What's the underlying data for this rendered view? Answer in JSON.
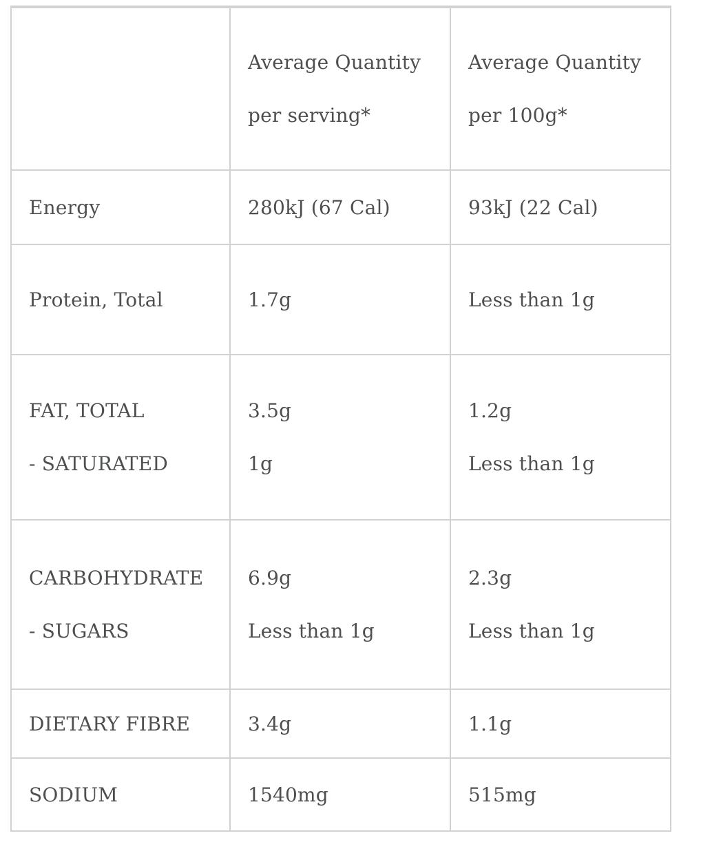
{
  "table": {
    "text_color": "#4e4f51",
    "border_color": "#d2d2d2",
    "header": {
      "per_serving_lines": [
        "Average Quantity",
        "per serving*"
      ],
      "per_100g_lines": [
        "Average Quantity",
        "per 100g*"
      ]
    },
    "rows": [
      {
        "id": "energy",
        "label_lines": [
          "Energy"
        ],
        "per_serving_lines": [
          "280kJ (67 Cal)"
        ],
        "per_100g_lines": [
          "93kJ (22 Cal)"
        ]
      },
      {
        "id": "protein",
        "label_lines": [
          "Protein, Total"
        ],
        "per_serving_lines": [
          "1.7g"
        ],
        "per_100g_lines": [
          "Less than 1g"
        ]
      },
      {
        "id": "fat",
        "label_lines": [
          "FAT, TOTAL",
          "- SATURATED"
        ],
        "per_serving_lines": [
          "3.5g",
          "1g"
        ],
        "per_100g_lines": [
          "1.2g",
          "Less than 1g"
        ]
      },
      {
        "id": "carbohydrate",
        "label_lines": [
          "CARBOHYDRATE",
          "- SUGARS"
        ],
        "per_serving_lines": [
          "6.9g",
          "Less than 1g"
        ],
        "per_100g_lines": [
          "2.3g",
          "Less than 1g"
        ]
      },
      {
        "id": "dietary-fibre",
        "label_lines": [
          "DIETARY FIBRE"
        ],
        "per_serving_lines": [
          "3.4g"
        ],
        "per_100g_lines": [
          "1.1g"
        ]
      },
      {
        "id": "sodium",
        "label_lines": [
          "SODIUM"
        ],
        "per_serving_lines": [
          "1540mg"
        ],
        "per_100g_lines": [
          "515mg"
        ]
      }
    ]
  }
}
